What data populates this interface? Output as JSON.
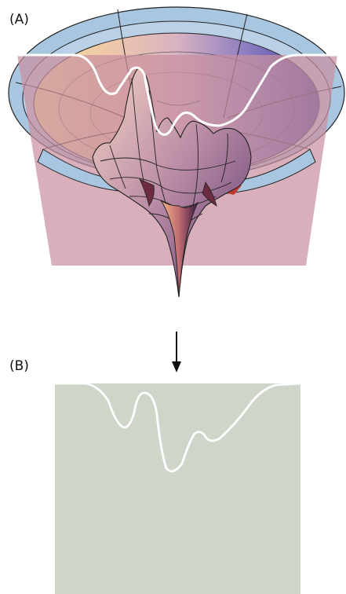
{
  "panels": {
    "a": {
      "label": "(A)"
    },
    "b": {
      "label": "(B)"
    }
  },
  "colors": {
    "slice_plane": "#c9909f",
    "rim_band": "#a9c6e0",
    "cross_section_fill": "#cfd5c9",
    "profile_line": "#ffffff",
    "arrow": "#111111"
  }
}
